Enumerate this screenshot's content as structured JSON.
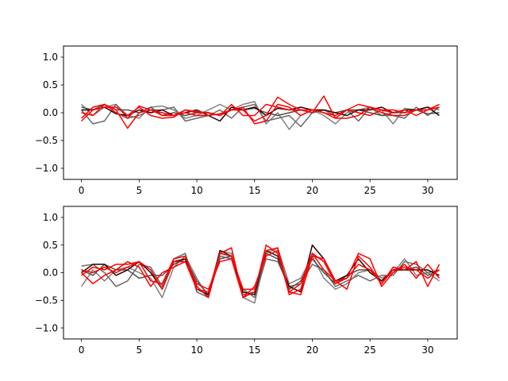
{
  "chart_data": [
    {
      "type": "line",
      "xlim": [
        -1.55,
        32.55
      ],
      "ylim": [
        -1.2,
        1.2
      ],
      "xticks": [
        0,
        5,
        10,
        15,
        20,
        25,
        30
      ],
      "yticks": [
        -1.0,
        -0.5,
        0.0,
        0.5,
        1.0
      ],
      "xtick_labels": [
        "0",
        "5",
        "10",
        "15",
        "20",
        "25",
        "30"
      ],
      "ytick_labels": [
        "−1.0",
        "−0.5",
        "0.0",
        "0.5",
        "1.0"
      ],
      "x": [
        0,
        1,
        2,
        3,
        4,
        5,
        6,
        7,
        8,
        9,
        10,
        11,
        12,
        13,
        14,
        15,
        16,
        17,
        18,
        19,
        20,
        21,
        22,
        23,
        24,
        25,
        26,
        27,
        28,
        29,
        30,
        31
      ],
      "series": [
        {
          "color": "#808080",
          "values": [
            0.15,
            -0.05,
            0.1,
            0.15,
            -0.05,
            -0.1,
            0.1,
            0.12,
            0.05,
            -0.1,
            -0.05,
            0.05,
            0.15,
            0.05,
            0.15,
            0.2,
            -0.2,
            0.0,
            -0.3,
            -0.05,
            0.05,
            -0.05,
            -0.2,
            0.0,
            0.05,
            0.1,
            0.05,
            -0.2,
            0.08,
            0.05,
            0.1,
            0.05
          ]
        },
        {
          "color": "#696969",
          "values": [
            0.05,
            -0.2,
            -0.15,
            0.15,
            -0.1,
            -0.05,
            0.05,
            0.05,
            0.1,
            -0.15,
            -0.1,
            -0.05,
            0.05,
            -0.1,
            0.1,
            0.15,
            -0.15,
            -0.1,
            -0.05,
            -0.25,
            0.0,
            0.05,
            -0.05,
            0.05,
            -0.15,
            0.1,
            -0.05,
            -0.05,
            -0.1,
            0.1,
            -0.05,
            0.1
          ]
        },
        {
          "color": "#505050",
          "values": [
            0.1,
            0.05,
            0.15,
            0.05,
            0.05,
            0.0,
            0.1,
            -0.05,
            0.0,
            -0.05,
            0.0,
            0.0,
            -0.05,
            0.05,
            0.05,
            0.08,
            0.0,
            -0.05,
            0.0,
            0.05,
            0.0,
            0.05,
            0.0,
            0.05,
            0.05,
            0.0,
            -0.05,
            0.0,
            0.0,
            0.05,
            -0.02,
            0.0
          ]
        },
        {
          "color": "#2b0000",
          "values": [
            0.05,
            0.05,
            0.1,
            -0.02,
            -0.05,
            0.05,
            0.0,
            0.05,
            -0.05,
            0.0,
            0.05,
            -0.05,
            -0.15,
            0.1,
            0.05,
            0.1,
            -0.05,
            0.08,
            0.05,
            0.1,
            0.05,
            0.05,
            0.0,
            -0.05,
            0.05,
            0.05,
            0.1,
            0.0,
            0.05,
            0.05,
            0.1,
            -0.05
          ]
        },
        {
          "color": "#ff0000",
          "values": [
            -0.15,
            0.05,
            0.1,
            0.1,
            -0.05,
            0.1,
            -0.05,
            -0.1,
            -0.08,
            0.05,
            0.02,
            0.0,
            -0.05,
            0.15,
            -0.05,
            -0.05,
            0.15,
            0.1,
            0.05,
            0.05,
            0.0,
            0.3,
            -0.1,
            -0.1,
            -0.05,
            0.1,
            0.05,
            0.0,
            0.05,
            -0.05,
            0.05,
            0.15
          ]
        },
        {
          "color": "#ff0000",
          "values": [
            0.0,
            -0.05,
            0.15,
            0.0,
            -0.1,
            0.12,
            0.05,
            -0.05,
            -0.05,
            0.0,
            -0.05,
            -0.05,
            -0.02,
            0.05,
            0.1,
            -0.2,
            -0.15,
            0.15,
            0.1,
            -0.05,
            0.05,
            0.0,
            -0.1,
            0.05,
            0.15,
            0.1,
            0.0,
            -0.05,
            -0.05,
            0.05,
            0.05,
            0.1
          ]
        },
        {
          "color": "#ff0000",
          "values": [
            -0.1,
            0.1,
            0.15,
            0.05,
            -0.28,
            0.0,
            0.05,
            0.0,
            -0.05,
            0.05,
            0.0,
            0.0,
            -0.05,
            0.05,
            0.05,
            -0.15,
            -0.05,
            0.28,
            0.15,
            0.05,
            0.05,
            0.0,
            -0.05,
            0.05,
            0.0,
            -0.05,
            0.05,
            0.05,
            0.0,
            0.05,
            0.05,
            0.15
          ]
        }
      ]
    },
    {
      "type": "line",
      "xlim": [
        -1.55,
        32.55
      ],
      "ylim": [
        -1.2,
        1.2
      ],
      "xticks": [
        0,
        5,
        10,
        15,
        20,
        25,
        30
      ],
      "yticks": [
        -1.0,
        -0.5,
        0.0,
        0.5,
        1.0
      ],
      "xtick_labels": [
        "0",
        "5",
        "10",
        "15",
        "20",
        "25",
        "30"
      ],
      "ytick_labels": [
        "−1.0",
        "−0.5",
        "0.0",
        "0.5",
        "1.0"
      ],
      "x": [
        0,
        1,
        2,
        3,
        4,
        5,
        6,
        7,
        8,
        9,
        10,
        11,
        12,
        13,
        14,
        15,
        16,
        17,
        18,
        19,
        20,
        21,
        22,
        23,
        24,
        25,
        26,
        27,
        28,
        29,
        30,
        31
      ],
      "series": [
        {
          "color": "#808080",
          "values": [
            -0.25,
            0.05,
            -0.15,
            0.05,
            0.1,
            0.0,
            -0.1,
            -0.45,
            0.1,
            0.3,
            -0.1,
            -0.45,
            0.4,
            0.35,
            -0.45,
            -0.55,
            0.35,
            0.45,
            -0.2,
            -0.1,
            0.3,
            -0.1,
            -0.3,
            -0.2,
            0.0,
            0.05,
            -0.1,
            0.0,
            0.25,
            -0.05,
            0.0,
            -0.15
          ]
        },
        {
          "color": "#696969",
          "values": [
            0.12,
            0.15,
            0.0,
            -0.25,
            -0.15,
            0.15,
            0.1,
            -0.25,
            0.25,
            0.35,
            -0.35,
            -0.45,
            0.3,
            0.25,
            -0.3,
            -0.45,
            0.25,
            0.2,
            -0.25,
            -0.2,
            0.15,
            0.05,
            -0.25,
            -0.15,
            -0.05,
            -0.15,
            -0.05,
            -0.05,
            0.2,
            0.15,
            0.0,
            0.05
          ]
        },
        {
          "color": "#505050",
          "values": [
            0.05,
            -0.05,
            0.15,
            0.05,
            0.05,
            -0.1,
            -0.05,
            -0.05,
            0.15,
            0.25,
            -0.15,
            -0.4,
            0.25,
            0.3,
            -0.4,
            -0.35,
            0.35,
            0.25,
            -0.3,
            -0.15,
            0.25,
            0.0,
            -0.2,
            -0.05,
            0.05,
            0.05,
            -0.15,
            0.05,
            0.05,
            0.1,
            -0.05,
            0.05
          ]
        },
        {
          "color": "#2b0000",
          "values": [
            0.0,
            0.15,
            0.15,
            -0.05,
            0.05,
            0.2,
            0.0,
            -0.3,
            0.2,
            0.25,
            -0.3,
            -0.4,
            0.4,
            0.3,
            -0.35,
            -0.4,
            0.4,
            0.3,
            -0.25,
            -0.35,
            0.5,
            0.25,
            -0.15,
            -0.05,
            0.25,
            0.0,
            -0.15,
            0.05,
            0.05,
            0.05,
            0.05,
            -0.05
          ]
        },
        {
          "color": "#ff0000",
          "values": [
            -0.05,
            0.1,
            0.05,
            0.15,
            0.15,
            0.2,
            -0.15,
            -0.2,
            0.25,
            0.3,
            -0.25,
            -0.45,
            0.35,
            0.45,
            -0.45,
            -0.35,
            0.5,
            0.35,
            -0.35,
            -0.2,
            0.35,
            0.2,
            -0.2,
            -0.1,
            0.15,
            0.05,
            -0.2,
            0.05,
            0.1,
            0.05,
            -0.1,
            0.05
          ]
        },
        {
          "color": "#ff0000",
          "values": [
            0.0,
            -0.2,
            -0.05,
            0.05,
            0.2,
            0.1,
            -0.25,
            0.0,
            0.1,
            0.2,
            -0.2,
            -0.3,
            0.2,
            0.25,
            -0.45,
            -0.25,
            0.3,
            0.4,
            -0.4,
            -0.3,
            0.35,
            0.05,
            -0.15,
            -0.3,
            0.3,
            0.1,
            -0.2,
            0.1,
            0.05,
            0.2,
            -0.25,
            0.15
          ]
        },
        {
          "color": "#ff0000",
          "values": [
            0.05,
            0.0,
            0.1,
            0.0,
            0.1,
            0.2,
            0.05,
            -0.3,
            0.2,
            0.2,
            -0.3,
            -0.35,
            0.35,
            0.3,
            -0.3,
            -0.3,
            0.4,
            0.45,
            -0.35,
            -0.4,
            0.3,
            0.25,
            -0.15,
            -0.1,
            0.35,
            0.25,
            -0.25,
            0.0,
            0.15,
            -0.1,
            0.15,
            -0.1
          ]
        }
      ]
    }
  ]
}
